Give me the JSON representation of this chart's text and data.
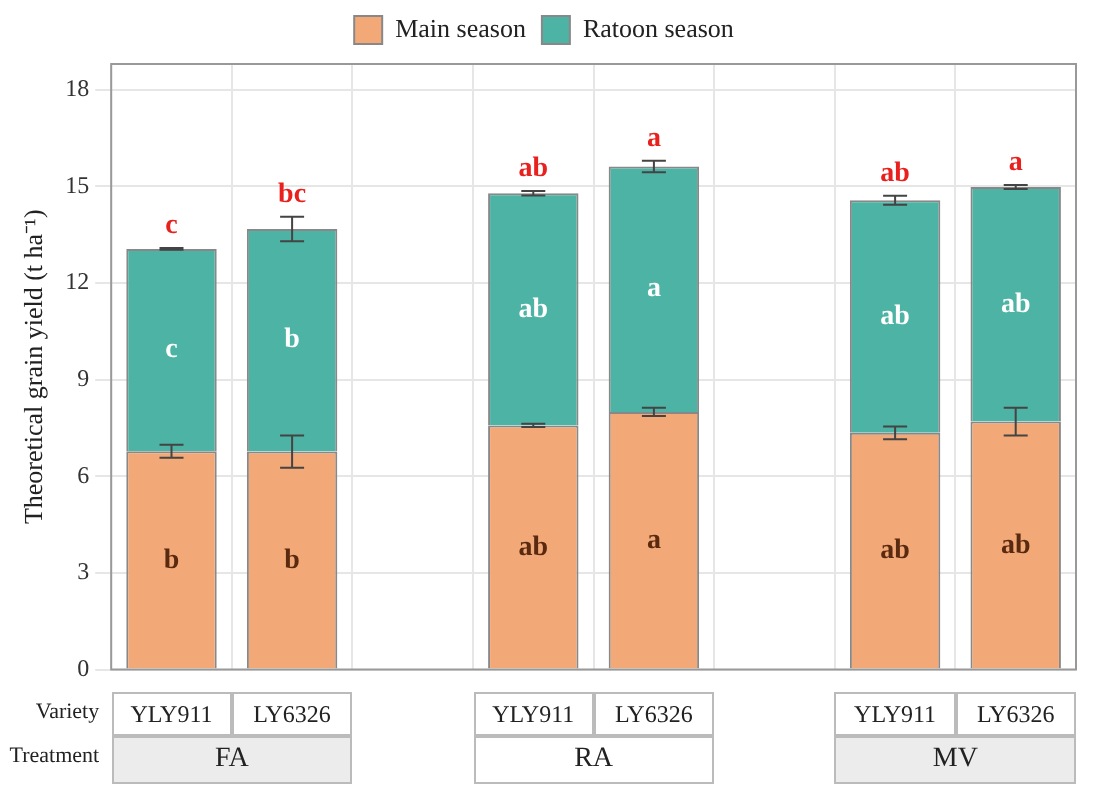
{
  "chart_data": {
    "type": "bar",
    "stacked": true,
    "ylabel": "Theoretical grain yield (t ha⁻¹)",
    "categories": [
      "YLY911",
      "LY6326",
      null,
      "YLY911",
      "LY6326",
      null,
      "YLY911",
      "LY6326"
    ],
    "series": [
      {
        "name": "Main season",
        "color": "#f2a977",
        "values": [
          6.78,
          6.77,
          null,
          7.58,
          8.0,
          null,
          7.35,
          7.7
        ],
        "errors": [
          0.2,
          0.5,
          null,
          0.05,
          0.13,
          null,
          0.2,
          0.43
        ],
        "value_labels": [
          "b",
          "b",
          null,
          "ab",
          "a",
          null,
          "ab",
          "ab"
        ]
      },
      {
        "name": "Ratoon season",
        "color": "#4db3a4",
        "values": [
          6.28,
          6.91,
          null,
          7.21,
          7.62,
          null,
          7.22,
          7.28
        ],
        "errors": [
          0.03,
          0.38,
          null,
          0.07,
          0.18,
          null,
          0.14,
          0.06
        ],
        "value_labels": [
          "c",
          "b",
          null,
          "ab",
          "a",
          null,
          "ab",
          "ab"
        ]
      }
    ],
    "annotations": [
      "Variety",
      "Treatment",
      "FA",
      "RA",
      "MV",
      "c",
      "bc",
      "ab",
      "a",
      "ab",
      "a"
    ],
    "ylim": [
      0,
      18.8
    ],
    "yticks": [
      0,
      3,
      6,
      9,
      12,
      15,
      18
    ],
    "grid": true,
    "legend": "top"
  }
}
